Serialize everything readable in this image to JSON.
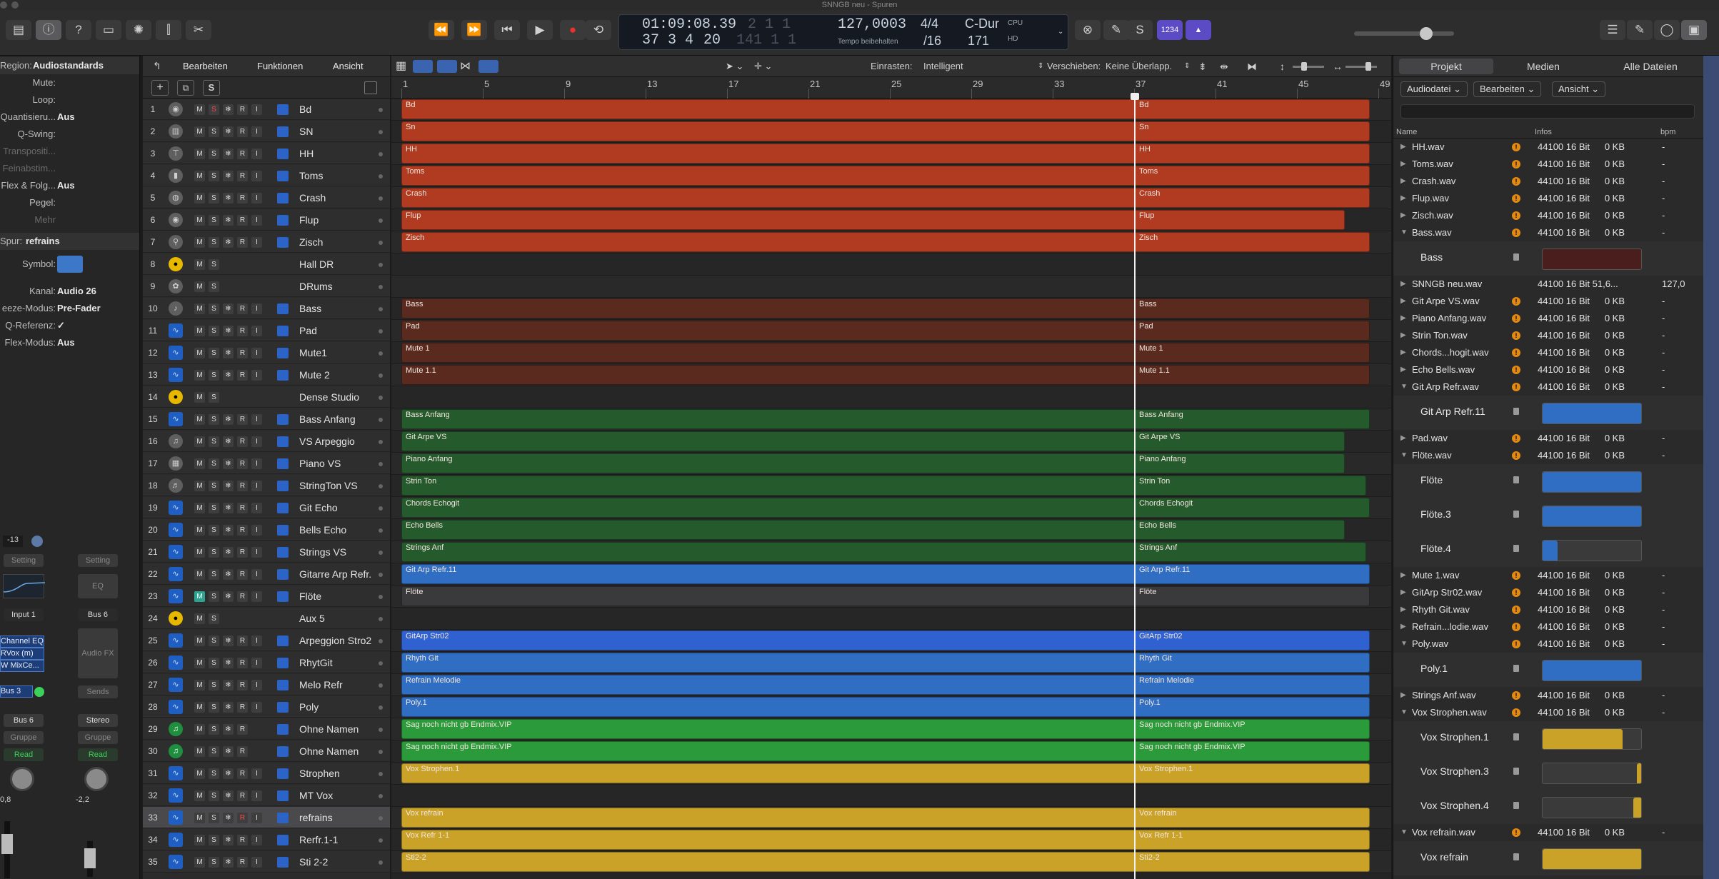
{
  "window": {
    "title": "SNNGB neu - Spuren"
  },
  "toolbar": {
    "tempo": "127,0003",
    "tempo_label": "Tempo beibehalten",
    "sig_top": "4/4",
    "sig_bottom": "/16",
    "key": "C-Dur",
    "key_num": "171",
    "time_main": "01:09:08.39",
    "time_bars": "37  3  4",
    "time_ticks": "20",
    "time_main_b": "2  1  1",
    "time_bars_b": "141  1  1",
    "cpu": "CPU",
    "hd": "HD",
    "count_in": "1234"
  },
  "inspector": {
    "region_label": "Region:",
    "region_value": "Audiostandards",
    "rows": [
      {
        "k": "Mute:",
        "v": ""
      },
      {
        "k": "Loop:",
        "v": ""
      },
      {
        "k": "Quantisieru...",
        "v": "Aus"
      },
      {
        "k": "Q-Swing:",
        "v": ""
      },
      {
        "k": "Transpositi...",
        "v": "",
        "dim": true
      },
      {
        "k": "Feinabstim...",
        "v": "",
        "dim": true
      },
      {
        "k": "Flex & Folg...",
        "v": "Aus"
      },
      {
        "k": "Pegel:",
        "v": ""
      },
      {
        "k": "Mehr",
        "v": "",
        "dim": true
      }
    ],
    "spur_label": "Spur:",
    "spur_value": "refrains",
    "rows2": [
      {
        "k": "Symbol:",
        "v": ""
      },
      {
        "k": "Kanal:",
        "v": "Audio 26"
      },
      {
        "k": "eeze-Modus:",
        "v": "Pre-Fader"
      },
      {
        "k": "Q-Referenz:",
        "v": "✓"
      },
      {
        "k": "Flex-Modus:",
        "v": "Aus"
      }
    ],
    "strip1": {
      "gain": "-13",
      "setting": "Setting",
      "input": "Input 1",
      "plugins": [
        "Channel EQ",
        "RVox (m)",
        "W MixCe..."
      ],
      "send": "Bus 3",
      "output": "Bus 6",
      "group": "Gruppe",
      "auto": "Read",
      "vol": "0,8"
    },
    "strip2": {
      "setting": "Setting",
      "eq": "EQ",
      "input": "Bus 6",
      "fx": "Audio FX",
      "sends": "Sends",
      "output": "Stereo",
      "group": "Gruppe",
      "auto": "Read",
      "vol": "-2,2"
    }
  },
  "tracklist_buttons": {
    "m": "M",
    "s": "S",
    "freeze": "❄",
    "r": "R",
    "i": "I"
  },
  "tracks": [
    {
      "n": "1",
      "name": "Bd",
      "icon": "drum",
      "type": "audio",
      "c": "#b03b20",
      "r": [
        "Bd",
        "Bd"
      ],
      "s_rec": true
    },
    {
      "n": "2",
      "name": "SN",
      "icon": "snare",
      "type": "audio",
      "c": "#b03b20",
      "r": [
        "Sn",
        "Sn"
      ]
    },
    {
      "n": "3",
      "name": "HH",
      "icon": "hihat",
      "type": "audio",
      "c": "#b03b20",
      "r": [
        "HH",
        "HH"
      ]
    },
    {
      "n": "4",
      "name": "Toms",
      "icon": "tom",
      "type": "audio",
      "c": "#b03b20",
      "r": [
        "Toms",
        "Toms"
      ]
    },
    {
      "n": "5",
      "name": "Crash",
      "icon": "cymbal",
      "type": "audio",
      "c": "#b03b20",
      "r": [
        "Crash",
        "Crash"
      ]
    },
    {
      "n": "6",
      "name": "Flup",
      "icon": "drum",
      "type": "audio",
      "c": "#b03b20",
      "r": [
        "Flup",
        "Flup"
      ],
      "short": true
    },
    {
      "n": "7",
      "name": "Zisch",
      "icon": "mallet",
      "type": "audio",
      "c": "#b03b20",
      "r": [
        "Zisch",
        "Zisch"
      ]
    },
    {
      "n": "8",
      "name": "Hall DR",
      "icon": "aux",
      "type": "aux",
      "c": "",
      "r": []
    },
    {
      "n": "9",
      "name": "DRums",
      "icon": "drumkit",
      "type": "aux",
      "c": "",
      "r": []
    },
    {
      "n": "10",
      "name": "Bass",
      "icon": "bass",
      "type": "audio",
      "c": "#5a2a1e",
      "r": [
        "Bass",
        "Bass"
      ]
    },
    {
      "n": "11",
      "name": "Pad",
      "icon": "wave",
      "type": "audio",
      "c": "#5a2a1e",
      "r": [
        "Pad",
        "Pad"
      ]
    },
    {
      "n": "12",
      "name": "Mute1",
      "icon": "wave",
      "type": "audio",
      "c": "#5a2a1e",
      "r": [
        "Mute 1",
        "Mute 1"
      ]
    },
    {
      "n": "13",
      "name": "Mute 2",
      "icon": "wave",
      "type": "audio",
      "c": "#5a2a1e",
      "r": [
        "Mute 1.1",
        "Mute 1.1"
      ]
    },
    {
      "n": "14",
      "name": "Dense Studio",
      "icon": "aux",
      "type": "aux",
      "c": "",
      "r": []
    },
    {
      "n": "15",
      "name": "Bass Anfang",
      "icon": "wave",
      "type": "audio",
      "c": "#255a2d",
      "r": [
        "Bass Anfang",
        "Bass Anfang"
      ]
    },
    {
      "n": "16",
      "name": "VS Arpeggio",
      "icon": "guitar",
      "type": "audio",
      "c": "#255a2d",
      "r": [
        "Git Arpe VS",
        "Git Arpe VS"
      ],
      "short": true
    },
    {
      "n": "17",
      "name": "Piano VS",
      "icon": "piano",
      "type": "audio",
      "c": "#255a2d",
      "r": [
        "Piano Anfang",
        "Piano Anfang"
      ],
      "short": true
    },
    {
      "n": "18",
      "name": "StringTon VS",
      "icon": "violin",
      "type": "audio",
      "c": "#255a2d",
      "r": [
        "Strin Ton",
        "Strin Ton"
      ],
      "mid": true
    },
    {
      "n": "19",
      "name": "Git Echo",
      "icon": "wave",
      "type": "audio",
      "c": "#255a2d",
      "r": [
        "Chords Echogit",
        "Chords Echogit"
      ]
    },
    {
      "n": "20",
      "name": "Bells Echo",
      "icon": "wave",
      "type": "audio",
      "c": "#255a2d",
      "r": [
        "Echo Bells",
        "Echo Bells"
      ],
      "short": true
    },
    {
      "n": "21",
      "name": "Strings VS",
      "icon": "wave",
      "type": "audio",
      "c": "#255a2d",
      "r": [
        "Strings Anf",
        "Strings Anf"
      ],
      "mid": true
    },
    {
      "n": "22",
      "name": "Gitarre Arp Refr.",
      "icon": "wave",
      "type": "audio",
      "c": "#2f6ec2",
      "r": [
        "Git Arp Refr.11",
        "Git Arp Refr.11"
      ]
    },
    {
      "n": "23",
      "name": "Flöte",
      "icon": "wave",
      "type": "audio",
      "c": "#3a3a3c",
      "r": [
        "Flöte",
        "Flöte"
      ],
      "m_on": true
    },
    {
      "n": "24",
      "name": "Aux 5",
      "icon": "aux",
      "type": "aux",
      "c": "",
      "r": []
    },
    {
      "n": "25",
      "name": "Arpeggion Stro2",
      "icon": "wave",
      "type": "audio",
      "c": "#2f62d0",
      "r": [
        "GitArp Str02",
        "GitArp Str02"
      ]
    },
    {
      "n": "26",
      "name": "RhytGit",
      "icon": "wave",
      "type": "audio",
      "c": "#2f6ec2",
      "r": [
        "Rhyth Git",
        "Rhyth Git"
      ]
    },
    {
      "n": "27",
      "name": "Melo Refr",
      "icon": "wave",
      "type": "audio",
      "c": "#2f6ec2",
      "r": [
        "Refrain Melodie",
        "Refrain Melodie"
      ]
    },
    {
      "n": "28",
      "name": "Poly",
      "icon": "wave",
      "type": "audio",
      "c": "#2f6ec2",
      "r": [
        "Poly.1",
        "Poly.1"
      ]
    },
    {
      "n": "29",
      "name": "Ohne Namen",
      "icon": "midi",
      "type": "midi",
      "c": "#2a9a3a",
      "r": [
        "Sag noch nicht gb Endmix.VIP",
        "Sag noch nicht gb Endmix.VIP"
      ]
    },
    {
      "n": "30",
      "name": "Ohne Namen",
      "icon": "midi",
      "type": "midi",
      "c": "#2a9a3a",
      "r": [
        "Sag noch nicht gb Endmix.VIP",
        "Sag noch nicht gb Endmix.VIP"
      ]
    },
    {
      "n": "31",
      "name": "Strophen",
      "icon": "wave",
      "type": "audio",
      "c": "#c9a227",
      "r": [
        "Vox Strophen.1",
        "Vox Strophen.1"
      ]
    },
    {
      "n": "32",
      "name": "MT Vox",
      "icon": "wave",
      "type": "audio",
      "c": "",
      "r": []
    },
    {
      "n": "33",
      "name": "refrains",
      "icon": "wave",
      "type": "audio",
      "c": "#c9a227",
      "r": [
        "Vox refrain",
        "Vox refrain"
      ],
      "sel": true,
      "r_rec": true
    },
    {
      "n": "34",
      "name": "Rerfr.1-1",
      "icon": "wave",
      "type": "audio",
      "c": "#c9a227",
      "r": [
        "Vox Refr 1-1",
        "Vox Refr 1-1"
      ]
    },
    {
      "n": "35",
      "name": "Sti 2-2",
      "icon": "wave",
      "type": "audio",
      "c": "#c9a227",
      "r": [
        "Sti2-2",
        "Sti2-2"
      ]
    }
  ],
  "arrange": {
    "snap_label": "Einrasten:",
    "snap_value": "Intelligent",
    "drag_label": "Verschieben:",
    "drag_value": "Keine Überlapp.",
    "ruler": [
      "1",
      "5",
      "9",
      "13",
      "17",
      "21",
      "25",
      "29",
      "33",
      "37",
      "41",
      "45",
      "49"
    ],
    "menus": [
      "Bearbeiten",
      "Funktionen",
      "Ansicht"
    ],
    "playhead_bar": 37
  },
  "browser": {
    "tabs": [
      "Projekt",
      "Medien",
      "Alle Dateien"
    ],
    "menus": [
      "Audiodatei",
      "Bearbeiten",
      "Ansicht"
    ],
    "cols": [
      "Name",
      "Infos",
      "bpm"
    ],
    "items": [
      {
        "t": "file",
        "name": "HH.wav",
        "info": "44100 16 Bit",
        "size": "0 KB",
        "bpm": "-",
        "warn": true,
        "open": false
      },
      {
        "t": "file",
        "name": "Toms.wav",
        "info": "44100 16 Bit",
        "size": "0 KB",
        "bpm": "-",
        "warn": true,
        "open": false
      },
      {
        "t": "file",
        "name": "Crash.wav",
        "info": "44100 16 Bit",
        "size": "0 KB",
        "bpm": "-",
        "warn": true,
        "open": false
      },
      {
        "t": "file",
        "name": "Flup.wav",
        "info": "44100 16 Bit",
        "size": "0 KB",
        "bpm": "-",
        "warn": true,
        "open": false
      },
      {
        "t": "file",
        "name": "Zisch.wav",
        "info": "44100 16 Bit",
        "size": "0 KB",
        "bpm": "-",
        "warn": true,
        "open": false
      },
      {
        "t": "file",
        "name": "Bass.wav",
        "info": "44100 16 Bit",
        "size": "0 KB",
        "bpm": "-",
        "warn": true,
        "open": true
      },
      {
        "t": "region",
        "name": "Bass",
        "color": "#4a1e1c",
        "fill": 1.0
      },
      {
        "t": "file",
        "name": "SNNGB neu.wav",
        "info": "44100 16 Bit  51,6...",
        "size": "",
        "bpm": "127,0",
        "warn": false,
        "open": false
      },
      {
        "t": "file",
        "name": "Git Arpe VS.wav",
        "info": "44100 16 Bit",
        "size": "0 KB",
        "bpm": "-",
        "warn": true,
        "open": false
      },
      {
        "t": "file",
        "name": "Piano Anfang.wav",
        "info": "44100 16 Bit",
        "size": "0 KB",
        "bpm": "-",
        "warn": true,
        "open": false
      },
      {
        "t": "file",
        "name": "Strin Ton.wav",
        "info": "44100 16 Bit",
        "size": "0 KB",
        "bpm": "-",
        "warn": true,
        "open": false
      },
      {
        "t": "file",
        "name": "Chords...hogit.wav",
        "info": "44100 16 Bit",
        "size": "0 KB",
        "bpm": "-",
        "warn": true,
        "open": false
      },
      {
        "t": "file",
        "name": "Echo Bells.wav",
        "info": "44100 16 Bit",
        "size": "0 KB",
        "bpm": "-",
        "warn": true,
        "open": false
      },
      {
        "t": "file",
        "name": "Git Arp Refr.wav",
        "info": "44100 16 Bit",
        "size": "0 KB",
        "bpm": "-",
        "warn": true,
        "open": true
      },
      {
        "t": "region",
        "name": "Git Arp Refr.11",
        "color": "#2f6ec2",
        "fill": 1.0
      },
      {
        "t": "file",
        "name": "Pad.wav",
        "info": "44100 16 Bit",
        "size": "0 KB",
        "bpm": "-",
        "warn": true,
        "open": false
      },
      {
        "t": "file",
        "name": "Flöte.wav",
        "info": "44100 16 Bit",
        "size": "0 KB",
        "bpm": "-",
        "warn": true,
        "open": true
      },
      {
        "t": "region",
        "name": "Flöte",
        "color": "#2f6ec2",
        "fill": 1.0
      },
      {
        "t": "region",
        "name": "Flöte.3",
        "color": "#2f6ec2",
        "fill": 1.0
      },
      {
        "t": "region",
        "name": "Flöte.4",
        "color": "#2f6ec2",
        "fill": 0.15
      },
      {
        "t": "file",
        "name": "Mute 1.wav",
        "info": "44100 16 Bit",
        "size": "0 KB",
        "bpm": "-",
        "warn": true,
        "open": false
      },
      {
        "t": "file",
        "name": "GitArp Str02.wav",
        "info": "44100 16 Bit",
        "size": "0 KB",
        "bpm": "-",
        "warn": true,
        "open": false
      },
      {
        "t": "file",
        "name": "Rhyth Git.wav",
        "info": "44100 16 Bit",
        "size": "0 KB",
        "bpm": "-",
        "warn": true,
        "open": false
      },
      {
        "t": "file",
        "name": "Refrain...lodie.wav",
        "info": "44100 16 Bit",
        "size": "0 KB",
        "bpm": "-",
        "warn": true,
        "open": false
      },
      {
        "t": "file",
        "name": "Poly.wav",
        "info": "44100 16 Bit",
        "size": "0 KB",
        "bpm": "-",
        "warn": true,
        "open": true
      },
      {
        "t": "region",
        "name": "Poly.1",
        "color": "#2f6ec2",
        "fill": 1.0
      },
      {
        "t": "file",
        "name": "Strings Anf.wav",
        "info": "44100 16 Bit",
        "size": "0 KB",
        "bpm": "-",
        "warn": true,
        "open": false
      },
      {
        "t": "file",
        "name": "Vox Strophen.wav",
        "info": "44100 16 Bit",
        "size": "0 KB",
        "bpm": "-",
        "warn": true,
        "open": true
      },
      {
        "t": "region",
        "name": "Vox Strophen.1",
        "color": "#c9a227",
        "fill": 0.8
      },
      {
        "t": "region",
        "name": "Vox Strophen.3",
        "color": "#c9a227",
        "fill": 0.05,
        "right": true
      },
      {
        "t": "region",
        "name": "Vox Strophen.4",
        "color": "#c9a227",
        "fill": 0.09,
        "right": true
      },
      {
        "t": "file",
        "name": "Vox refrain.wav",
        "info": "44100 16 Bit",
        "size": "0 KB",
        "bpm": "-",
        "warn": true,
        "open": true
      },
      {
        "t": "region",
        "name": "Vox refrain",
        "color": "#c9a227",
        "fill": 1.0
      }
    ]
  }
}
